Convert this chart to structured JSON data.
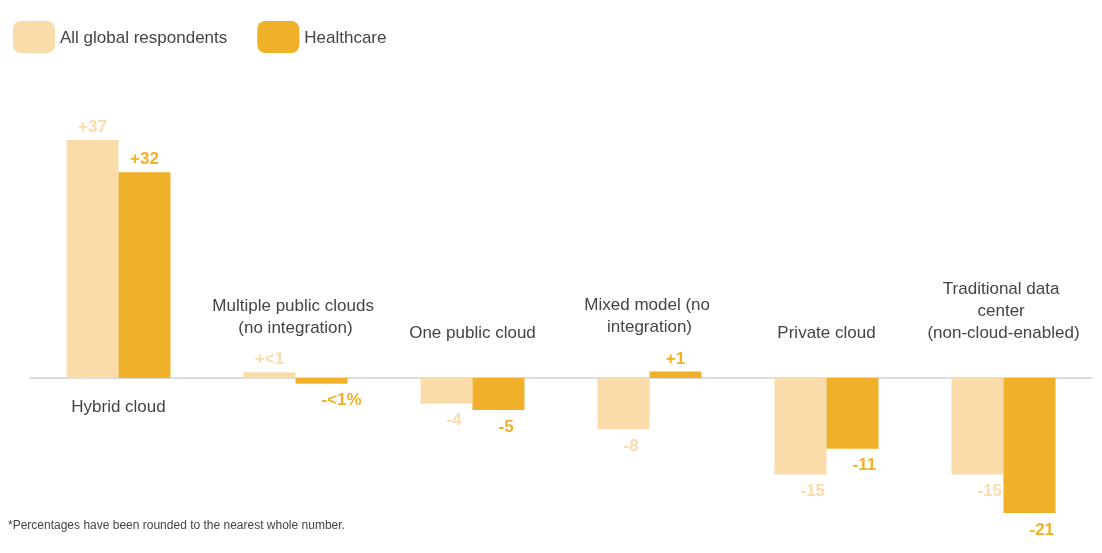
{
  "chart_data": {
    "type": "bar",
    "categories": [
      "Hybrid cloud",
      "Multiple public clouds (no integration)",
      "One public cloud",
      "Mixed model (no integration)",
      "Private cloud",
      "Traditional data center (non-cloud-enabled)"
    ],
    "series": [
      {
        "name": "All global respondents",
        "color": "#fadcaa",
        "values": [
          37,
          0.9,
          -4,
          -8,
          -15,
          -15
        ],
        "value_labels": [
          "+37",
          "+<1",
          "-4",
          "-8",
          "-15",
          "-15"
        ]
      },
      {
        "name": "Healthcare",
        "color": "#f0b02a",
        "values": [
          32,
          -0.9,
          -5,
          1,
          -11,
          -21
        ],
        "value_labels": [
          "+32",
          "-<1%",
          "-5",
          "+1",
          "-11",
          "-21"
        ]
      }
    ],
    "legend": "top left",
    "grid": false,
    "annotations": [
      "*Percentages have been rounded to the nearest whole number."
    ]
  }
}
